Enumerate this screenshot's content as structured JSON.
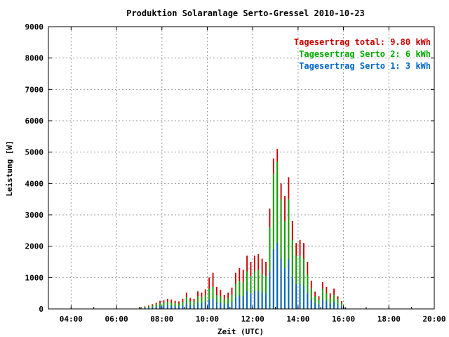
{
  "chart_data": {
    "type": "bar",
    "title": "Produktion Solaranlage Serto-Gressel 2010-10-23",
    "xlabel": "Zeit (UTC)",
    "ylabel": "Leistung [W]",
    "xlim": [
      "03:00",
      "20:00"
    ],
    "ylim": [
      0,
      9000
    ],
    "x_ticks": [
      "04:00",
      "06:00",
      "08:00",
      "10:00",
      "12:00",
      "14:00",
      "16:00",
      "18:00",
      "20:00"
    ],
    "y_ticks": [
      "0",
      "1000",
      "2000",
      "3000",
      "4000",
      "5000",
      "6000",
      "7000",
      "8000",
      "9000"
    ],
    "grid": true,
    "legend_position": "top-right",
    "colors": {
      "total": "#cc0000",
      "serto2": "#00aa00",
      "serto1": "#0066cc"
    },
    "legend": [
      {
        "label": "Tagesertrag total:",
        "value": "9.80 kWh",
        "color": "#cc0000"
      },
      {
        "label": "Tagesertrag Serto 2:",
        "value": "6 kWh",
        "color": "#00aa00"
      },
      {
        "label": "Tagesertrag Serto 1:",
        "value": "3 kWh",
        "color": "#0066cc"
      }
    ],
    "x": [
      "07:05",
      "07:15",
      "07:25",
      "07:35",
      "07:45",
      "07:55",
      "08:05",
      "08:15",
      "08:25",
      "08:35",
      "08:45",
      "08:55",
      "09:05",
      "09:15",
      "09:25",
      "09:35",
      "09:45",
      "09:55",
      "10:05",
      "10:15",
      "10:25",
      "10:35",
      "10:45",
      "10:55",
      "11:05",
      "11:15",
      "11:25",
      "11:35",
      "11:45",
      "11:55",
      "12:05",
      "12:15",
      "12:25",
      "12:35",
      "12:45",
      "12:55",
      "13:05",
      "13:15",
      "13:25",
      "13:35",
      "13:45",
      "13:55",
      "14:05",
      "14:15",
      "14:25",
      "14:35",
      "14:45",
      "14:55",
      "15:05",
      "15:15",
      "15:25",
      "15:35",
      "15:45",
      "15:55",
      "16:05"
    ],
    "series": [
      {
        "name": "Tagesertrag total",
        "values": [
          60,
          80,
          110,
          150,
          200,
          260,
          280,
          320,
          300,
          260,
          240,
          320,
          520,
          350,
          320,
          560,
          520,
          620,
          1000,
          1150,
          700,
          600,
          450,
          520,
          680,
          1150,
          1300,
          1250,
          1700,
          1500,
          1700,
          1750,
          1600,
          1500,
          3200,
          4800,
          5100,
          4000,
          3600,
          4200,
          2800,
          2100,
          2200,
          2100,
          1500,
          900,
          550,
          400,
          850,
          700,
          500,
          650,
          400,
          250,
          60
        ]
      },
      {
        "name": "Tagesertrag Serto 2",
        "values": [
          40,
          60,
          80,
          110,
          150,
          190,
          200,
          230,
          210,
          180,
          170,
          230,
          380,
          250,
          230,
          400,
          380,
          450,
          650,
          700,
          450,
          400,
          300,
          350,
          450,
          800,
          900,
          850,
          1200,
          1050,
          1200,
          1250,
          1100,
          1050,
          2600,
          4300,
          4700,
          3500,
          2800,
          3500,
          2200,
          1700,
          1700,
          1600,
          1100,
          650,
          400,
          300,
          650,
          500,
          350,
          450,
          300,
          180,
          40
        ]
      },
      {
        "name": "Tagesertrag Serto 1",
        "values": [
          20,
          30,
          40,
          50,
          70,
          90,
          100,
          120,
          110,
          90,
          80,
          110,
          180,
          120,
          110,
          190,
          180,
          210,
          300,
          330,
          220,
          190,
          150,
          170,
          220,
          380,
          430,
          400,
          560,
          490,
          560,
          580,
          520,
          490,
          1200,
          1900,
          2100,
          1600,
          1300,
          1600,
          1000,
          780,
          790,
          740,
          510,
          300,
          190,
          140,
          300,
          240,
          170,
          210,
          140,
          90,
          20
        ]
      }
    ]
  }
}
